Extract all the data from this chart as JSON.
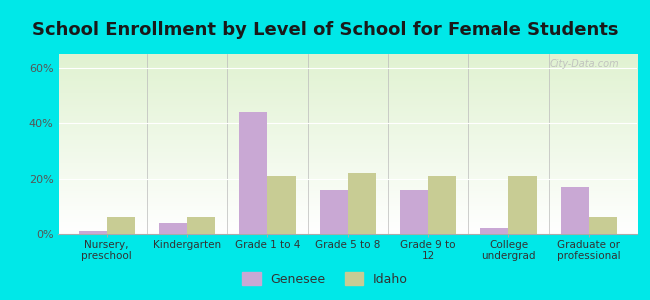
{
  "title": "School Enrollment by Level of School for Female Students",
  "categories": [
    "Nursery,\npreschool",
    "Kindergarten",
    "Grade 1 to 4",
    "Grade 5 to 8",
    "Grade 9 to\n12",
    "College\nundergrad",
    "Graduate or\nprofessional"
  ],
  "genesee": [
    1.0,
    4.0,
    44.0,
    16.0,
    16.0,
    2.0,
    17.0
  ],
  "idaho": [
    6.0,
    6.0,
    21.0,
    22.0,
    21.0,
    21.0,
    6.0
  ],
  "genesee_color": "#c9a8d4",
  "idaho_color": "#c8cc94",
  "background_color": "#00e8e8",
  "plot_bg_color": "#eef7e8",
  "ylim": [
    0,
    65
  ],
  "yticks": [
    0,
    20,
    40,
    60
  ],
  "ytick_labels": [
    "0%",
    "20%",
    "40%",
    "60%"
  ],
  "title_fontsize": 13,
  "legend_labels": [
    "Genesee",
    "Idaho"
  ],
  "bar_width": 0.35
}
